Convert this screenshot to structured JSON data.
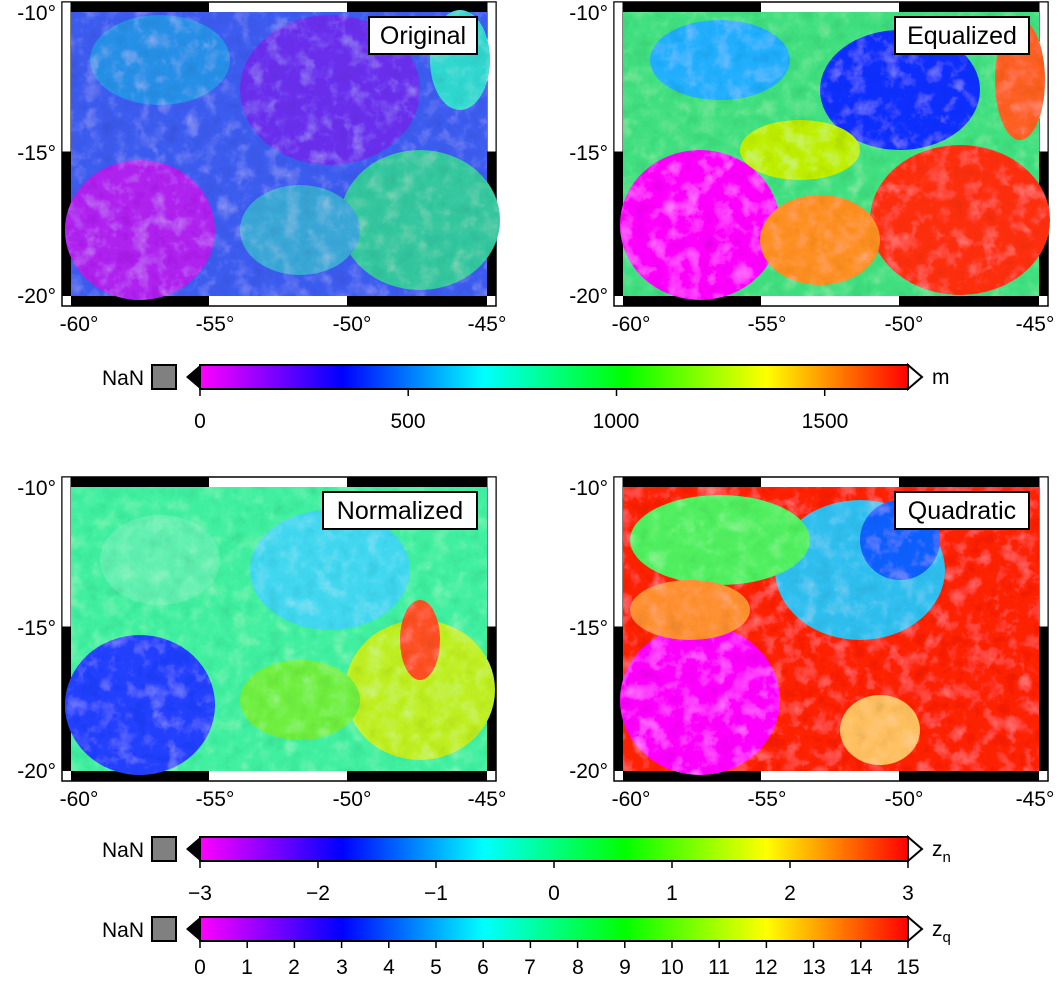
{
  "colors": {
    "cpt_stops": [
      "#ff00ff",
      "#0000ff",
      "#00ffff",
      "#00ff00",
      "#ffff00",
      "#ff0000"
    ],
    "nan_color": "#808080",
    "frame_black": "#000000",
    "frame_white": "#ffffff"
  },
  "lon_ticks": [
    "-60°",
    "-55°",
    "-50°",
    "-45°"
  ],
  "lat_ticks": [
    "-10°",
    "-15°",
    "-20°"
  ],
  "panels": [
    {
      "id": "original",
      "title": "Original"
    },
    {
      "id": "equalized",
      "title": "Equalized"
    },
    {
      "id": "normalized",
      "title": "Normalized"
    },
    {
      "id": "quadratic",
      "title": "Quadratic"
    }
  ],
  "colorbars": [
    {
      "id": "elevation",
      "nan_label": "NaN",
      "unit": "m",
      "unit_sub": "",
      "range": [
        0,
        1700
      ],
      "ticks": [
        "0",
        "500",
        "1000",
        "1500"
      ]
    },
    {
      "id": "normalized",
      "nan_label": "NaN",
      "unit": "z",
      "unit_sub": "n",
      "range": [
        -3,
        3
      ],
      "ticks": [
        "−3",
        "−2",
        "−1",
        "0",
        "1",
        "2",
        "3"
      ]
    },
    {
      "id": "quadratic",
      "nan_label": "NaN",
      "unit": "z",
      "unit_sub": "q",
      "range": [
        0,
        15
      ],
      "ticks": [
        "0",
        "1",
        "2",
        "3",
        "4",
        "5",
        "6",
        "7",
        "8",
        "9",
        "10",
        "11",
        "12",
        "13",
        "14",
        "15"
      ]
    }
  ]
}
